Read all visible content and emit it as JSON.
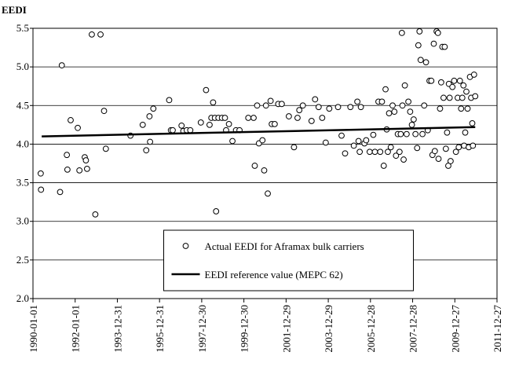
{
  "chart_data": {
    "type": "scatter",
    "title": "EEDI",
    "xlim": [
      "1990-01-01",
      "2011-12-27"
    ],
    "xticks": [
      "1990-01-01",
      "1992-01-01",
      "1993-12-31",
      "1995-12-31",
      "1997-12-30",
      "1999-12-30",
      "2001-12-29",
      "2003-12-29",
      "2005-12-28",
      "2007-12-28",
      "2009-12-27",
      "2011-12-27"
    ],
    "ylim": [
      2,
      5.5
    ],
    "yticks": [
      {
        "value": 2,
        "label": "2.0"
      },
      2.5,
      {
        "value": 3,
        "label": "3.0"
      },
      3.5,
      {
        "value": 4,
        "label": "4.0"
      },
      4.5,
      {
        "value": 5,
        "label": "5.0"
      },
      5.5
    ],
    "grid": true,
    "legend": "lower center",
    "series": [
      {
        "name": "Actual EEDI for Aframax bulk carriers",
        "type": "scatter",
        "color": "#000000",
        "x": [
          "1990-05-15",
          "1990-05-20",
          "1991-04-15",
          "1991-05-15",
          "1991-08-10",
          "1991-08-20",
          "1991-10-15",
          "1992-02-15",
          "1992-03-15",
          "1992-06-15",
          "1992-07-05",
          "1992-07-25",
          "1992-10-15",
          "1992-12-15",
          "1993-03-15",
          "1993-05-15",
          "1993-06-15",
          "1994-08-15",
          "1995-03-15",
          "1995-05-15",
          "1995-07-10",
          "1995-07-20",
          "1995-09-15",
          "1996-06-15",
          "1996-07-15",
          "1996-08-15",
          "1997-01-15",
          "1997-02-15",
          "1997-04-15",
          "1997-06-15",
          "1997-12-15",
          "1998-03-15",
          "1998-05-15",
          "1998-06-15",
          "1998-07-15",
          "1998-08-15",
          "1998-09-05",
          "1998-10-15",
          "1998-12-15",
          "1999-02-05",
          "1999-02-25",
          "1999-04-15",
          "1999-06-15",
          "1999-08-15",
          "1999-10-15",
          "2000-03-15",
          "2000-06-15",
          "2000-07-05",
          "2000-08-15",
          "2000-09-15",
          "2000-11-15",
          "2000-12-15",
          "2001-01-15",
          "2001-02-15",
          "2001-04-05",
          "2001-04-25",
          "2001-06-15",
          "2001-08-15",
          "2001-10-15",
          "2002-02-15",
          "2002-05-15",
          "2002-07-15",
          "2002-08-15",
          "2002-10-15",
          "2003-03-15",
          "2003-05-15",
          "2003-07-15",
          "2003-09-15",
          "2003-11-15",
          "2004-01-15",
          "2004-06-15",
          "2004-08-15",
          "2004-10-15",
          "2005-01-15",
          "2005-03-15",
          "2005-05-15",
          "2005-06-05",
          "2005-06-25",
          "2005-07-15",
          "2005-09-15",
          "2005-10-15",
          "2005-12-15",
          "2006-02-15",
          "2006-03-15",
          "2006-05-15",
          "2006-06-15",
          "2006-07-15",
          "2006-08-15",
          "2006-09-15",
          "2006-10-05",
          "2006-10-25",
          "2006-11-15",
          "2006-12-15",
          "2007-01-15",
          "2007-02-15",
          "2007-03-15",
          "2007-04-15",
          "2007-05-15",
          "2007-06-05",
          "2007-06-25",
          "2007-07-05",
          "2007-07-25",
          "2007-08-15",
          "2007-09-15",
          "2007-10-15",
          "2007-11-15",
          "2007-12-15",
          "2008-01-15",
          "2008-02-15",
          "2008-03-15",
          "2008-04-05",
          "2008-04-25",
          "2008-05-15",
          "2008-06-15",
          "2008-07-15",
          "2008-08-15",
          "2008-09-15",
          "2008-10-15",
          "2008-11-15",
          "2008-12-05",
          "2008-12-28",
          "2009-01-15",
          "2009-02-15",
          "2009-03-10",
          "2009-03-20",
          "2009-04-15",
          "2009-05-05",
          "2009-05-25",
          "2009-06-15",
          "2009-07-05",
          "2009-07-25",
          "2009-08-15",
          "2009-09-05",
          "2009-09-15",
          "2009-09-28",
          "2009-10-15",
          "2009-11-15",
          "2009-12-15",
          "2010-01-15",
          "2010-02-15",
          "2010-03-05",
          "2010-03-25",
          "2010-04-15",
          "2010-05-05",
          "2010-05-25",
          "2010-06-05",
          "2010-06-25",
          "2010-07-15",
          "2010-08-05",
          "2010-08-25",
          "2010-09-15",
          "2010-10-05",
          "2010-10-25",
          "2010-11-05",
          "2010-11-25",
          "2010-12-15"
        ],
        "values": [
          3.62,
          3.41,
          3.38,
          5.02,
          3.86,
          3.67,
          4.31,
          4.21,
          3.66,
          3.83,
          3.79,
          3.68,
          5.42,
          3.09,
          5.42,
          4.43,
          3.94,
          4.11,
          4.25,
          3.92,
          4.36,
          4.03,
          4.46,
          4.57,
          4.18,
          4.18,
          4.24,
          4.17,
          4.18,
          4.18,
          4.28,
          4.7,
          4.25,
          4.34,
          4.54,
          4.34,
          3.13,
          4.34,
          4.34,
          4.34,
          4.18,
          4.26,
          4.04,
          4.18,
          4.18,
          4.34,
          4.34,
          3.72,
          4.5,
          4.01,
          4.05,
          3.66,
          4.5,
          3.36,
          4.56,
          4.26,
          4.26,
          4.52,
          4.52,
          4.36,
          3.96,
          4.34,
          4.44,
          4.5,
          4.3,
          4.58,
          4.48,
          4.34,
          4.02,
          4.46,
          4.48,
          4.11,
          3.88,
          4.48,
          3.98,
          4.55,
          4.04,
          3.9,
          4.48,
          4.01,
          4.05,
          3.9,
          4.12,
          3.9,
          4.55,
          3.9,
          4.55,
          3.72,
          4.71,
          4.19,
          3.9,
          4.4,
          3.96,
          4.5,
          4.42,
          3.85,
          4.13,
          3.9,
          4.13,
          5.44,
          4.5,
          3.8,
          4.76,
          4.13,
          4.55,
          4.42,
          4.25,
          4.32,
          4.13,
          3.95,
          5.28,
          5.46,
          5.09,
          4.13,
          4.5,
          5.06,
          4.18,
          4.82,
          4.82,
          3.86,
          5.3,
          3.91,
          5.46,
          5.44,
          3.81,
          4.46,
          4.8,
          5.26,
          4.6,
          5.26,
          3.94,
          4.15,
          3.72,
          4.78,
          4.6,
          3.78,
          4.74,
          4.82,
          3.9,
          4.6,
          3.96,
          4.82,
          4.46,
          4.6,
          4.76,
          3.98,
          4.15,
          4.68,
          4.46,
          3.96,
          4.87,
          4.6,
          4.27,
          3.98,
          4.9,
          4.62
        ]
      },
      {
        "name": "EEDI reference value (MEPC 62)",
        "type": "line",
        "color": "#000000",
        "x": [
          "1990-06-01",
          "2010-12-15"
        ],
        "values": [
          4.1,
          4.22
        ]
      }
    ]
  }
}
